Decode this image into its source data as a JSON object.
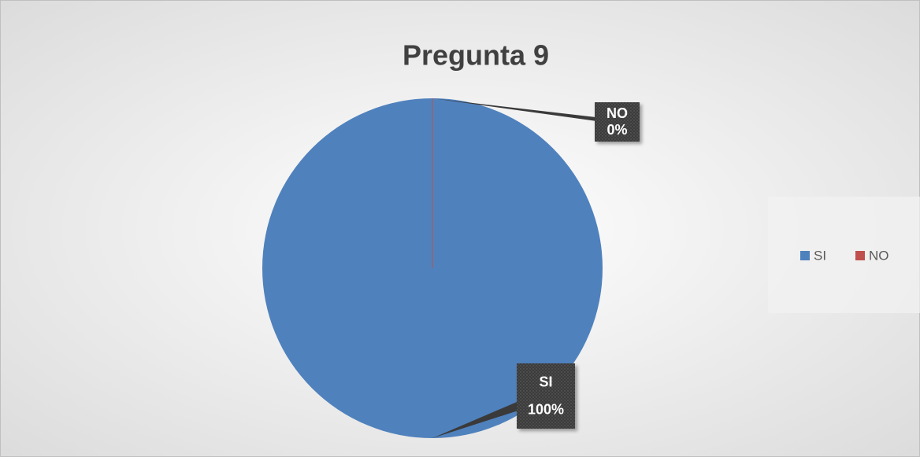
{
  "chart_data": {
    "type": "pie",
    "title": "Pregunta 9",
    "categories": [
      "SI",
      "NO"
    ],
    "values": [
      100,
      0
    ],
    "value_labels": [
      "100%",
      "0%"
    ],
    "colors": [
      "#4f81bd",
      "#c0504d"
    ],
    "legend": "right"
  }
}
